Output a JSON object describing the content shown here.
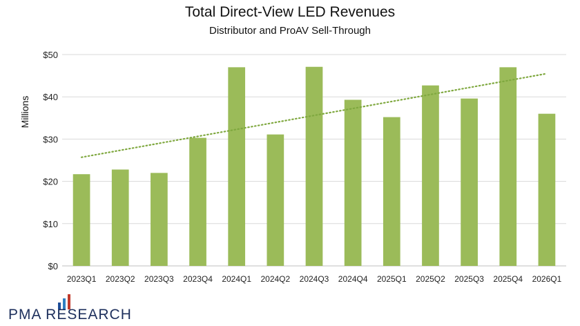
{
  "chart_data": {
    "type": "bar",
    "title": "Total Direct-View LED Revenues",
    "subtitle": "Distributor and ProAV Sell-Through",
    "xlabel": "",
    "ylabel": "Millions",
    "categories": [
      "2023Q1",
      "2023Q2",
      "2023Q3",
      "2023Q4",
      "2024Q1",
      "2024Q2",
      "2024Q3",
      "2024Q4",
      "2025Q1",
      "2025Q2",
      "2025Q3",
      "2025Q4",
      "2026Q1"
    ],
    "values": [
      21.7,
      22.8,
      22.0,
      30.3,
      47.0,
      31.1,
      47.1,
      39.3,
      35.2,
      42.7,
      39.6,
      47.0,
      36.0
    ],
    "ylim": [
      0,
      50
    ],
    "yticks": [
      0,
      10,
      20,
      30,
      40,
      50
    ],
    "ytick_labels": [
      "$0",
      "$10",
      "$20",
      "$30",
      "$40",
      "$50"
    ],
    "trendline": {
      "type": "linear",
      "style": "dotted",
      "start": 25.7,
      "end": 45.5
    },
    "grid": true,
    "legend": "none",
    "colors": {
      "bar": "#9bbb59",
      "trend": "#7fa83f",
      "grid": "#d9d9d9"
    }
  },
  "branding": {
    "logo_text": "PMA RESEARCH",
    "logo_bar_colors": [
      "#1f4e99",
      "#2f7fc1",
      "#c0392b"
    ]
  }
}
